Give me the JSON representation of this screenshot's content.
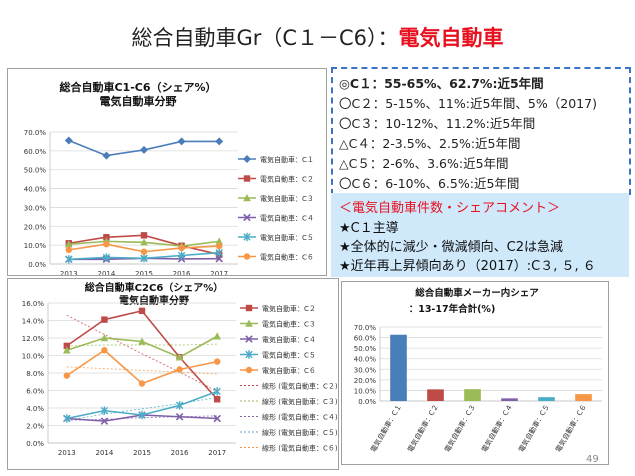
{
  "page": {
    "title_main": "総合自動車Gr（C１－C6）：",
    "title_red": "電気自動車",
    "page_number": "49"
  },
  "summary": {
    "lines": [
      "◎C１：55-65%、62.7%:近5年間",
      "〇C２：5-15%、11%:近5年間、5%（2017)",
      "〇C３：10-12%、11.2%:近5年間",
      "△C４：2-3.5%、2.5%:近5年間",
      "△C５：2-6%、3.6%:近5年間",
      "〇C６：6-10%、6.5%:近5年間"
    ]
  },
  "comment": {
    "heading": "＜電気自動車件数・シェアコメント＞",
    "items": [
      "★C１主導",
      "★全体的に減少・微減傾向、C2は急減",
      "★近年再上昇傾向あり（2017）:C３, ５, ６"
    ]
  },
  "colors": {
    "C1": "#4a7ebb",
    "C2": "#be4b48",
    "C3": "#9bbb59",
    "C4": "#7f5fa8",
    "C5": "#4bacc6",
    "C6": "#f79646",
    "accent_red": "#e8101e",
    "info_border": "#3a74c8",
    "comment_bg": "#cfe8fa"
  },
  "chart_data": [
    {
      "type": "line",
      "title": "総合自動車C1-C6（シェア%）",
      "subtitle": "電気自動車分野",
      "x": [
        "2013",
        "2014",
        "2015",
        "2016",
        "2017"
      ],
      "ylim": [
        0,
        70
      ],
      "yticks": [
        "0.0%",
        "10.0%",
        "20.0%",
        "30.0%",
        "40.0%",
        "50.0%",
        "60.0%",
        "70.0%"
      ],
      "grid": true,
      "legend": "right",
      "series": [
        {
          "name": "電気自動車：C１",
          "key": "C1",
          "marker": "diamond",
          "values": [
            65.5,
            57.5,
            60.5,
            65.0,
            65.0
          ]
        },
        {
          "name": "電気自動車：C２",
          "key": "C2",
          "marker": "square",
          "values": [
            11.0,
            14.2,
            15.2,
            9.7,
            5.0
          ]
        },
        {
          "name": "電気自動車：C３",
          "key": "C3",
          "marker": "triangle",
          "values": [
            10.5,
            12.0,
            11.5,
            9.5,
            12.0
          ]
        },
        {
          "name": "電気自動車：C４",
          "key": "C4",
          "marker": "x",
          "values": [
            2.5,
            2.5,
            3.0,
            2.7,
            2.8
          ]
        },
        {
          "name": "電気自動車：C５",
          "key": "C5",
          "marker": "star",
          "values": [
            2.5,
            3.5,
            3.0,
            4.5,
            6.0
          ]
        },
        {
          "name": "電気自動車：C６",
          "key": "C6",
          "marker": "circle",
          "values": [
            7.5,
            10.5,
            6.5,
            8.5,
            9.5
          ]
        }
      ]
    },
    {
      "type": "line",
      "title": "総合自動車C2C6（シェア%）",
      "subtitle": "電気自動車分野",
      "x": [
        "2013",
        "2014",
        "2015",
        "2016",
        "2017"
      ],
      "ylim": [
        0,
        16
      ],
      "yticks": [
        "0.0%",
        "2.0%",
        "4.0%",
        "6.0%",
        "8.0%",
        "10.0%",
        "12.0%",
        "14.0%",
        "16.0%"
      ],
      "grid": true,
      "legend": "right",
      "series": [
        {
          "name": "電気自動車：C２",
          "key": "C2",
          "marker": "square",
          "values": [
            11.1,
            14.1,
            15.1,
            9.8,
            5.0
          ]
        },
        {
          "name": "電気自動車：C３",
          "key": "C3",
          "marker": "triangle",
          "values": [
            10.6,
            12.0,
            11.6,
            9.8,
            12.2
          ]
        },
        {
          "name": "電気自動車：C４",
          "key": "C4",
          "marker": "x",
          "values": [
            2.8,
            2.5,
            3.2,
            3.0,
            2.8
          ]
        },
        {
          "name": "電気自動車：C５",
          "key": "C5",
          "marker": "star",
          "values": [
            2.8,
            3.7,
            3.2,
            4.3,
            5.9
          ]
        },
        {
          "name": "電気自動車：C６",
          "key": "C6",
          "marker": "circle",
          "values": [
            7.7,
            10.6,
            6.8,
            8.4,
            9.3
          ]
        }
      ],
      "trendlines": [
        {
          "name": "線形 (電気自動車：C２)",
          "key": "C2",
          "values": [
            14.6,
            12.4,
            10.2,
            8.1,
            5.9
          ]
        },
        {
          "name": "線形 (電気自動車：C３)",
          "key": "C3",
          "values": [
            11.1,
            11.2,
            11.2,
            11.2,
            11.3
          ]
        },
        {
          "name": "線形 (電気自動車：C４)",
          "key": "C4",
          "values": [
            2.6,
            2.7,
            2.9,
            3.0,
            3.1
          ]
        },
        {
          "name": "線形 (電気自動車：C５)",
          "key": "C5",
          "values": [
            2.6,
            3.3,
            3.9,
            4.5,
            5.2
          ]
        },
        {
          "name": "線形 (電気自動車：C６)",
          "key": "C6",
          "values": [
            8.7,
            8.5,
            8.3,
            8.1,
            7.9
          ]
        }
      ]
    },
    {
      "type": "bar",
      "title": "総合自動車メーカー内シェア",
      "subtitle": "：13-17年合計(%)",
      "categories": [
        "電気自動車：C１",
        "電気自動車：C２",
        "電気自動車：C３",
        "電気自動車：C４",
        "電気自動車：C５",
        "電気自動車：C６"
      ],
      "keys": [
        "C1",
        "C2",
        "C3",
        "C4",
        "C5",
        "C6"
      ],
      "values": [
        62.7,
        11.0,
        11.2,
        2.5,
        3.6,
        6.5
      ],
      "ylim": [
        0,
        70
      ],
      "yticks": [
        "0.0%",
        "10.0%",
        "20.0%",
        "30.0%",
        "40.0%",
        "50.0%",
        "60.0%",
        "70.0%"
      ],
      "grid": true
    }
  ]
}
